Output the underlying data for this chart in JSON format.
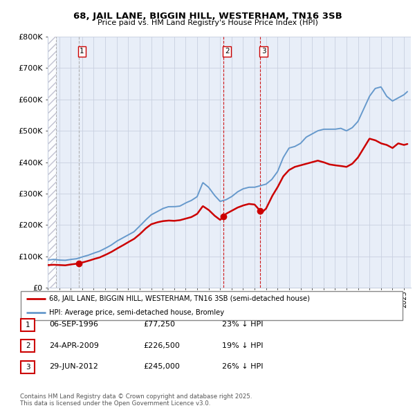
{
  "title1": "68, JAIL LANE, BIGGIN HILL, WESTERHAM, TN16 3SB",
  "title2": "Price paid vs. HM Land Registry's House Price Index (HPI)",
  "ylim": [
    0,
    800000
  ],
  "yticks": [
    0,
    100000,
    200000,
    300000,
    400000,
    500000,
    600000,
    700000,
    800000
  ],
  "ytick_labels": [
    "£0",
    "£100K",
    "£200K",
    "£300K",
    "£400K",
    "£500K",
    "£600K",
    "£700K",
    "£800K"
  ],
  "xlim_start": 1994.0,
  "xlim_end": 2025.6,
  "sale_dates": [
    1996.68,
    2009.31,
    2012.49
  ],
  "sale_prices": [
    77250,
    226500,
    245000
  ],
  "sale_labels": [
    "1",
    "2",
    "3"
  ],
  "legend_label_red": "68, JAIL LANE, BIGGIN HILL, WESTERHAM, TN16 3SB (semi-detached house)",
  "legend_label_blue": "HPI: Average price, semi-detached house, Bromley",
  "table_rows": [
    {
      "num": "1",
      "date": "06-SEP-1996",
      "price": "£77,250",
      "pct": "23% ↓ HPI"
    },
    {
      "num": "2",
      "date": "24-APR-2009",
      "price": "£226,500",
      "pct": "19% ↓ HPI"
    },
    {
      "num": "3",
      "date": "29-JUN-2012",
      "price": "£245,000",
      "pct": "26% ↓ HPI"
    }
  ],
  "footer": "Contains HM Land Registry data © Crown copyright and database right 2025.\nThis data is licensed under the Open Government Licence v3.0.",
  "red_color": "#cc0000",
  "blue_color": "#6699cc",
  "bg_color": "#e8eef8",
  "grid_color": "#c8d0e0",
  "vline_color": "#888888"
}
